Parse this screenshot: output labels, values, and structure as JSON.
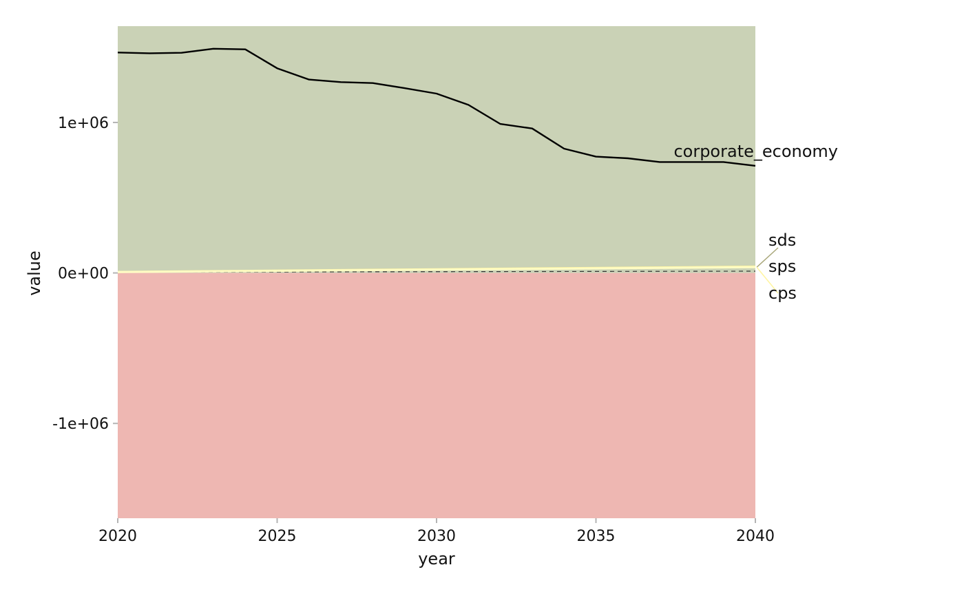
{
  "chart_data": {
    "type": "area",
    "title": "",
    "xlabel": "year",
    "ylabel": "value",
    "xlim": [
      2020,
      2040
    ],
    "ylim": [
      -1630000,
      1640000
    ],
    "x_ticks": [
      2020,
      2025,
      2030,
      2035,
      2040
    ],
    "y_ticks": [
      {
        "value": 1000000,
        "label": "1e+06"
      },
      {
        "value": 0,
        "label": "0e+00"
      },
      {
        "value": -1000000,
        "label": "-1e+06"
      }
    ],
    "grid": false,
    "colors": {
      "upper_area": "#cad2b6",
      "lower_area": "#eeb7b2",
      "corporate_economy": "#000000",
      "sds": "#a9a77a",
      "sps": "#fffcc4",
      "cps": "#fff5a0",
      "baseline_dash": "#333333",
      "tick": "#b3b3b3"
    },
    "bands": [
      {
        "from": 0,
        "to": 1640000,
        "color": "#cad2b6"
      },
      {
        "from": -1630000,
        "to": 0,
        "color": "#eeb7b2"
      }
    ],
    "series": [
      {
        "name": "corporate_economy",
        "style": "solid",
        "x": [
          2020,
          2021,
          2022,
          2023,
          2024,
          2025,
          2026,
          2027,
          2028,
          2029,
          2030,
          2031,
          2032,
          2033,
          2034,
          2035,
          2036,
          2037,
          2038,
          2039,
          2040
        ],
        "values": [
          1465000,
          1460000,
          1463000,
          1490000,
          1486000,
          1360000,
          1285000,
          1268000,
          1262000,
          1228000,
          1192000,
          1117000,
          990000,
          960000,
          826000,
          773000,
          762000,
          737000,
          737000,
          737000,
          712000
        ]
      },
      {
        "name": "sds",
        "style": "dashed",
        "x": [
          2020,
          2040
        ],
        "values": [
          5000,
          12000
        ]
      },
      {
        "name": "sps",
        "style": "solid",
        "x": [
          2020,
          2040
        ],
        "values": [
          6000,
          38000
        ]
      },
      {
        "name": "cps",
        "style": "solid",
        "x": [
          2020,
          2040
        ],
        "values": [
          7000,
          42000
        ]
      }
    ]
  }
}
